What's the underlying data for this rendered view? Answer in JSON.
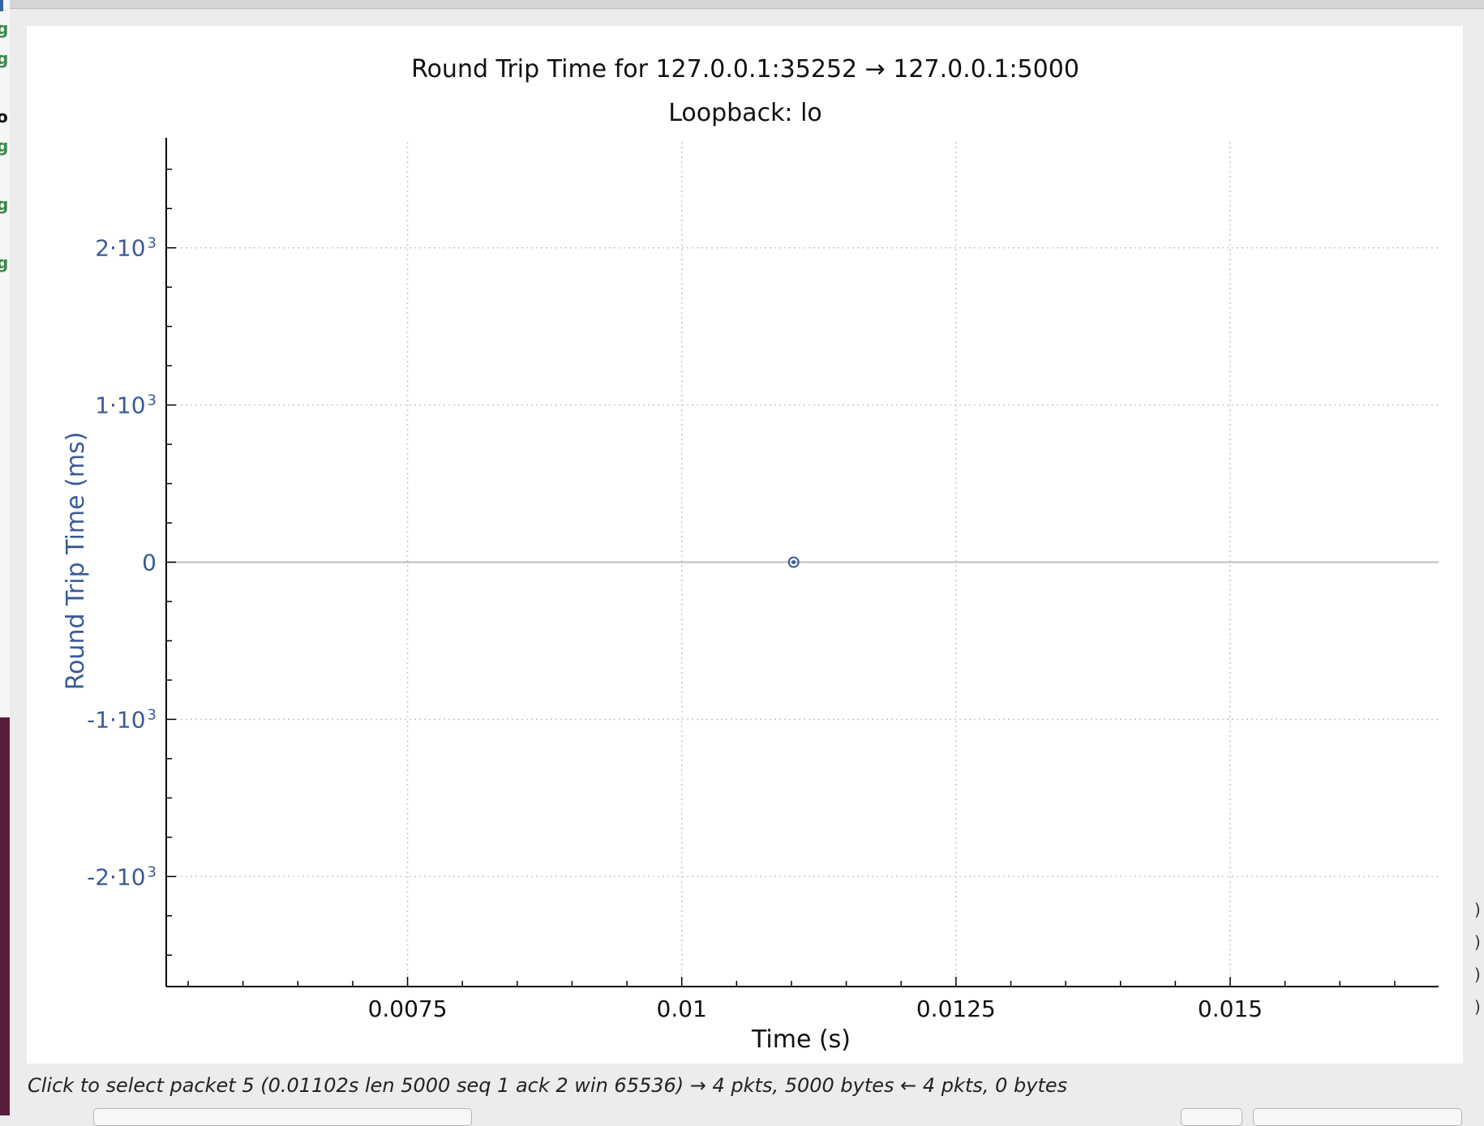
{
  "chart_data": {
    "type": "scatter",
    "title": "Round Trip Time for 127.0.0.1:35252 → 127.0.0.1:5000",
    "subtitle": "Loopback: lo",
    "xlabel": "Time (s)",
    "ylabel": "Round Trip Time (ms)",
    "xlim": [
      0.0053,
      0.0169
    ],
    "ylim": [
      -2700,
      2700
    ],
    "x_ticks": [
      {
        "value": 0.0075,
        "label": "0.0075"
      },
      {
        "value": 0.01,
        "label": "0.01"
      },
      {
        "value": 0.0125,
        "label": "0.0125"
      },
      {
        "value": 0.015,
        "label": "0.015"
      }
    ],
    "y_ticks": [
      {
        "value": 2000,
        "mantissa": "2·10",
        "exp": "3"
      },
      {
        "value": 1000,
        "mantissa": "1·10",
        "exp": "3"
      },
      {
        "value": 0,
        "mantissa": "0",
        "exp": ""
      },
      {
        "value": -1000,
        "mantissa": "-1·10",
        "exp": "3"
      },
      {
        "value": -2000,
        "mantissa": "-2·10",
        "exp": "3"
      }
    ],
    "grid": true,
    "series": [
      {
        "points": [
          {
            "x": 0.01102,
            "y": 0
          }
        ]
      }
    ],
    "colors": {
      "series": "#3a5b9a",
      "y_axis_text": "#3a5b9a",
      "grid": "#c8c8c8",
      "axis": "#000000"
    }
  },
  "status_bar": {
    "text": "Click to select packet 5 (0.01102s len 5000 seq 1 ack 2 win 65536) → 4 pkts, 5000 bytes ← 4 pkts, 0 bytes"
  },
  "background": {
    "left_fragments": [
      "g",
      "g",
      "o",
      "g",
      "g",
      "g"
    ]
  }
}
